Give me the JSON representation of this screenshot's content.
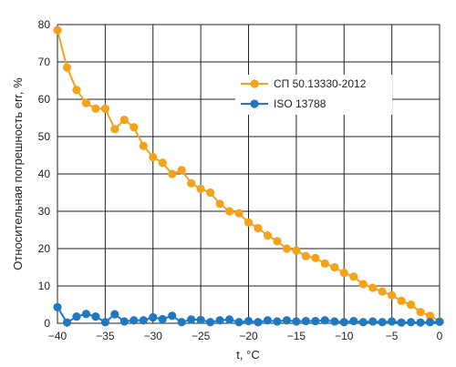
{
  "chart_data": {
    "type": "line",
    "xlabel": "t, °C",
    "ylabel": "Относительная погрешность err, %",
    "xlim": [
      -40,
      0
    ],
    "ylim": [
      0,
      80
    ],
    "xticks": [
      -40,
      -35,
      -30,
      -25,
      -20,
      -15,
      -10,
      -5,
      0
    ],
    "yticks": [
      0,
      10,
      20,
      30,
      40,
      50,
      60,
      70,
      80
    ],
    "grid": true,
    "legend_position": "upper-right",
    "series": [
      {
        "name": "СП 50.13330-2012",
        "color": "#f5a21b",
        "x": [
          -40,
          -39,
          -38,
          -37,
          -36,
          -35,
          -34,
          -33,
          -32,
          -31,
          -30,
          -29,
          -28,
          -27,
          -26,
          -25,
          -24,
          -23,
          -22,
          -21,
          -20,
          -19,
          -18,
          -17,
          -16,
          -15,
          -14,
          -13,
          -12,
          -11,
          -10,
          -9,
          -8,
          -7,
          -6,
          -5,
          -4,
          -3,
          -2,
          -1,
          0
        ],
        "values": [
          78.5,
          68.5,
          62.5,
          59,
          57.5,
          57.5,
          52,
          54.5,
          52.5,
          47.5,
          44.5,
          43,
          40,
          41,
          37.5,
          36,
          35,
          32,
          30,
          29.5,
          27,
          25.5,
          23.5,
          22,
          20,
          19.5,
          18,
          17.5,
          16,
          15,
          13.5,
          12.5,
          10.5,
          9.5,
          8.5,
          7.5,
          6,
          5,
          3,
          2,
          0.5
        ]
      },
      {
        "name": "ISO 13788",
        "color": "#1f78c2",
        "x": [
          -40,
          -39,
          -38,
          -37,
          -36,
          -35,
          -34,
          -33,
          -32,
          -31,
          -30,
          -29,
          -28,
          -27,
          -26,
          -25,
          -24,
          -23,
          -22,
          -21,
          -20,
          -19,
          -18,
          -17,
          -16,
          -15,
          -14,
          -13,
          -12,
          -11,
          -10,
          -9,
          -8,
          -7,
          -6,
          -5,
          -4,
          -3,
          -2,
          -1,
          0
        ],
        "values": [
          4.3,
          0.2,
          1.8,
          2.5,
          1.8,
          0.3,
          2.4,
          0.5,
          0.8,
          0.8,
          1.6,
          1.1,
          2.0,
          0.3,
          1.0,
          0.9,
          0.3,
          0.8,
          1.0,
          0.3,
          0.6,
          0.3,
          0.8,
          0.5,
          0.8,
          0.5,
          0.6,
          0.6,
          0.8,
          0.5,
          0.3,
          0.6,
          0.3,
          0.5,
          0.3,
          0.5,
          0.2,
          0.3,
          0.2,
          0.3,
          0.4
        ]
      }
    ]
  }
}
